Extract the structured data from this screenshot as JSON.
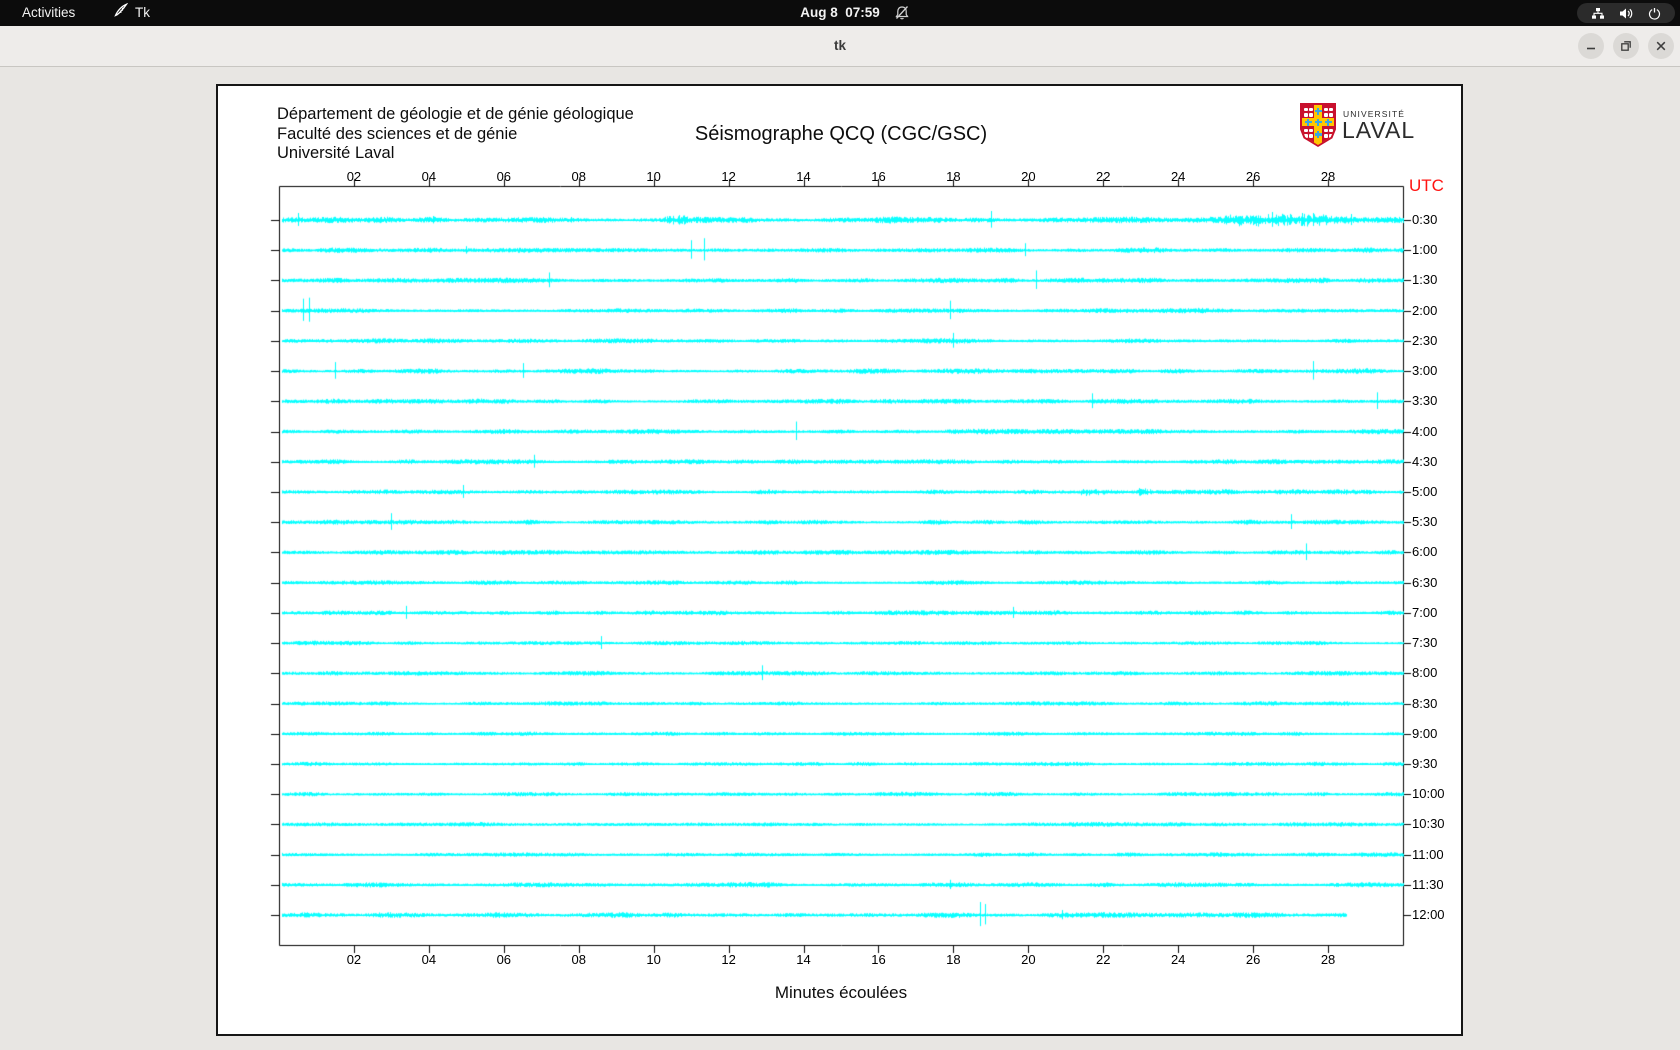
{
  "topbar": {
    "activities_label": "Activities",
    "app_indicator_label": "Tk",
    "clock": "Aug 8  07:59",
    "icons": {
      "notifications": "bell-slash-icon",
      "network": "network-icon",
      "volume": "speaker-icon",
      "power": "power-icon"
    }
  },
  "titlebar": {
    "title": "tk"
  },
  "header": {
    "institution_lines": [
      "Département de géologie et de génie géologique",
      "Faculté des sciences et de génie",
      "Université Laval"
    ],
    "title": "Séismographe QCQ (CGC/GSC)",
    "logo_line1": "UNIVERSITÉ",
    "logo_line2": "LAVAL"
  },
  "chart_data": {
    "type": "line",
    "subtype": "helicorder-seismograph",
    "title": "Séismographe QCQ (CGC/GSC)",
    "xlabel": "Minutes écoulées",
    "right_axis_label": "UTC",
    "x_range_minutes": [
      0,
      30
    ],
    "x_tick_labels": [
      "02",
      "04",
      "06",
      "08",
      "10",
      "12",
      "14",
      "16",
      "18",
      "20",
      "22",
      "24",
      "26",
      "28"
    ],
    "trace_color": "#00ffff",
    "grid": false,
    "last_row_end_minute": 28.5,
    "rows": [
      {
        "label": "0:30",
        "amp": 2.4
      },
      {
        "label": "1:00",
        "amp": 1.9
      },
      {
        "label": "1:30",
        "amp": 1.8
      },
      {
        "label": "2:00",
        "amp": 1.8
      },
      {
        "label": "2:30",
        "amp": 1.8
      },
      {
        "label": "3:00",
        "amp": 1.9
      },
      {
        "label": "3:30",
        "amp": 1.8
      },
      {
        "label": "4:00",
        "amp": 1.8
      },
      {
        "label": "4:30",
        "amp": 1.7
      },
      {
        "label": "5:00",
        "amp": 1.8
      },
      {
        "label": "5:30",
        "amp": 1.8
      },
      {
        "label": "6:00",
        "amp": 1.7
      },
      {
        "label": "6:30",
        "amp": 1.6
      },
      {
        "label": "7:00",
        "amp": 1.7
      },
      {
        "label": "7:30",
        "amp": 1.6
      },
      {
        "label": "8:00",
        "amp": 1.6
      },
      {
        "label": "8:30",
        "amp": 1.5
      },
      {
        "label": "9:00",
        "amp": 1.5
      },
      {
        "label": "9:30",
        "amp": 1.5
      },
      {
        "label": "10:00",
        "amp": 1.6
      },
      {
        "label": "10:30",
        "amp": 1.6
      },
      {
        "label": "11:00",
        "amp": 1.6
      },
      {
        "label": "11:30",
        "amp": 1.8
      },
      {
        "label": "12:00",
        "amp": 2.0
      }
    ],
    "spikes": [
      {
        "row": 0,
        "m": 0.5,
        "h": 7
      },
      {
        "row": 0,
        "m": 4.1,
        "h": 4
      },
      {
        "row": 0,
        "m": 7.8,
        "h": 3
      },
      {
        "row": 0,
        "m": 19.0,
        "h": 9
      },
      {
        "row": 0,
        "m": 26.5,
        "h": 8
      },
      {
        "row": 0,
        "m": 27.3,
        "h": 7
      },
      {
        "row": 0,
        "m": 27.6,
        "h": 7
      },
      {
        "row": 0,
        "m": 28.6,
        "h": 6
      },
      {
        "row": 1,
        "m": 5.0,
        "h": 4
      },
      {
        "row": 1,
        "m": 11.0,
        "h": 10
      },
      {
        "row": 1,
        "m": 11.35,
        "h": 12
      },
      {
        "row": 1,
        "m": 19.9,
        "h": 7
      },
      {
        "row": 2,
        "m": 7.2,
        "h": 8
      },
      {
        "row": 2,
        "m": 20.2,
        "h": 10
      },
      {
        "row": 3,
        "m": 0.65,
        "h": 12
      },
      {
        "row": 3,
        "m": 0.8,
        "h": 13
      },
      {
        "row": 3,
        "m": 17.9,
        "h": 10
      },
      {
        "row": 4,
        "m": 18.0,
        "h": 8
      },
      {
        "row": 5,
        "m": 1.5,
        "h": 9
      },
      {
        "row": 5,
        "m": 6.5,
        "h": 8
      },
      {
        "row": 5,
        "m": 27.6,
        "h": 10
      },
      {
        "row": 6,
        "m": 21.7,
        "h": 8
      },
      {
        "row": 6,
        "m": 29.3,
        "h": 9
      },
      {
        "row": 7,
        "m": 13.8,
        "h": 10
      },
      {
        "row": 8,
        "m": 6.8,
        "h": 7
      },
      {
        "row": 9,
        "m": 4.9,
        "h": 7
      },
      {
        "row": 10,
        "m": 3.0,
        "h": 9
      },
      {
        "row": 10,
        "m": 27.0,
        "h": 8
      },
      {
        "row": 11,
        "m": 27.4,
        "h": 9
      },
      {
        "row": 13,
        "m": 3.4,
        "h": 7
      },
      {
        "row": 13,
        "m": 19.6,
        "h": 6
      },
      {
        "row": 14,
        "m": 8.6,
        "h": 7
      },
      {
        "row": 15,
        "m": 12.9,
        "h": 8
      },
      {
        "row": 22,
        "m": 17.9,
        "h": 5
      },
      {
        "row": 23,
        "m": 18.7,
        "h": 13
      },
      {
        "row": 23,
        "m": 18.85,
        "h": 11
      },
      {
        "row": 23,
        "m": 20.9,
        "h": 5
      }
    ],
    "bursts": [
      {
        "row": 0,
        "m0": 10.2,
        "m1": 10.9,
        "amp": 3.5
      },
      {
        "row": 0,
        "m0": 25.2,
        "m1": 28.2,
        "amp": 4.5
      },
      {
        "row": 9,
        "m0": 21.4,
        "m1": 21.9,
        "amp": 3.2
      },
      {
        "row": 9,
        "m0": 22.8,
        "m1": 23.3,
        "amp": 3.2
      }
    ]
  },
  "colors": {
    "trace_cyan": "#00ffff",
    "utc_red": "#ff1412",
    "topbar_bg": "#0c0c0c",
    "titlebar_bg": "#eeecea",
    "page_bg": "#e8e6e3",
    "logo_red": "#c8102e",
    "logo_yellow": "#ffc600",
    "logo_blue": "#3aa7de"
  }
}
